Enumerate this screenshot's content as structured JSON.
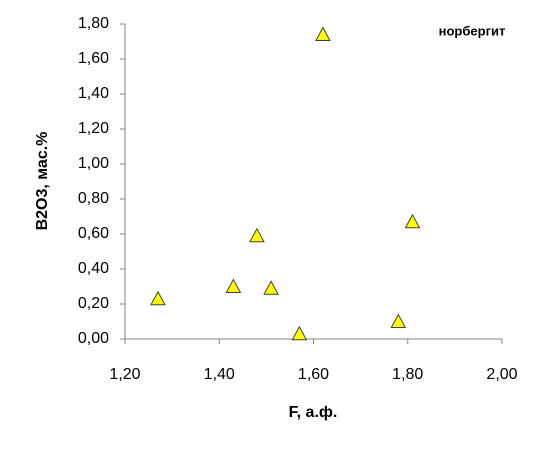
{
  "chart_data": {
    "type": "scatter",
    "x_label": "F, а.ф.",
    "y_label": "B2O3, мас.%",
    "series": [
      {
        "name": "норбергит",
        "color": "#ffff00",
        "x": [
          1.27,
          1.43,
          1.48,
          1.51,
          1.57,
          1.62,
          1.78,
          1.81
        ],
        "values": [
          0.23,
          0.3,
          0.59,
          0.29,
          0.03,
          1.74,
          0.1,
          0.67
        ]
      }
    ],
    "xlim": [
      1.2,
      2.0
    ],
    "xticks": [
      {
        "value": 1.2,
        "label": "1,20"
      },
      {
        "value": 1.4,
        "label": "1,40"
      },
      {
        "value": 1.6,
        "label": "1,60"
      },
      {
        "value": 1.8,
        "label": "1,80"
      },
      {
        "value": 2.0,
        "label": "2,00"
      }
    ],
    "ylim": [
      0,
      1.8
    ],
    "yticks": [
      {
        "value": 0,
        "label": "0,00"
      },
      {
        "value": 0.2,
        "label": "0,20"
      },
      {
        "value": 0.4,
        "label": "0,40"
      },
      {
        "value": 0.6,
        "label": "0,60"
      },
      {
        "value": 0.8,
        "label": "0,80"
      },
      {
        "value": 1.0,
        "label": "1,00"
      },
      {
        "value": 1.2,
        "label": "1,20"
      },
      {
        "value": 1.4,
        "label": "1,40"
      },
      {
        "value": 1.6,
        "label": "1,60"
      },
      {
        "value": 1.8,
        "label": "1,80"
      }
    ],
    "grid": false,
    "legend": "top-right"
  }
}
